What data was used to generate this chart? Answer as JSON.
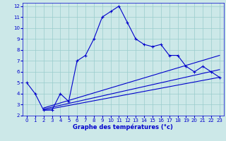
{
  "main_x": [
    0,
    1,
    2,
    3,
    4,
    5,
    6,
    7,
    8,
    9,
    10,
    11,
    12,
    13,
    14,
    15,
    16,
    17,
    18,
    19,
    20,
    21,
    22,
    23
  ],
  "main_y": [
    5.0,
    4.0,
    2.5,
    2.5,
    4.0,
    3.3,
    7.0,
    7.5,
    9.0,
    11.0,
    11.5,
    12.0,
    10.5,
    9.0,
    8.5,
    8.3,
    8.5,
    7.5,
    7.5,
    6.5,
    6.0,
    6.5,
    6.0,
    5.5
  ],
  "line1_x": [
    2,
    23
  ],
  "line1_y": [
    2.5,
    5.5
  ],
  "line2_x": [
    2,
    23
  ],
  "line2_y": [
    2.6,
    6.2
  ],
  "line3_x": [
    2,
    23
  ],
  "line3_y": [
    2.7,
    7.5
  ],
  "xlabel": "Graphe des températures (°c)",
  "xlim": [
    -0.5,
    23.5
  ],
  "ylim": [
    2,
    12.3
  ],
  "yticks": [
    2,
    3,
    4,
    5,
    6,
    7,
    8,
    9,
    10,
    11,
    12
  ],
  "xticks": [
    0,
    1,
    2,
    3,
    4,
    5,
    6,
    7,
    8,
    9,
    10,
    11,
    12,
    13,
    14,
    15,
    16,
    17,
    18,
    19,
    20,
    21,
    22,
    23
  ],
  "line_color": "#0000cc",
  "bg_color": "#cce8e8",
  "grid_color": "#99cccc"
}
